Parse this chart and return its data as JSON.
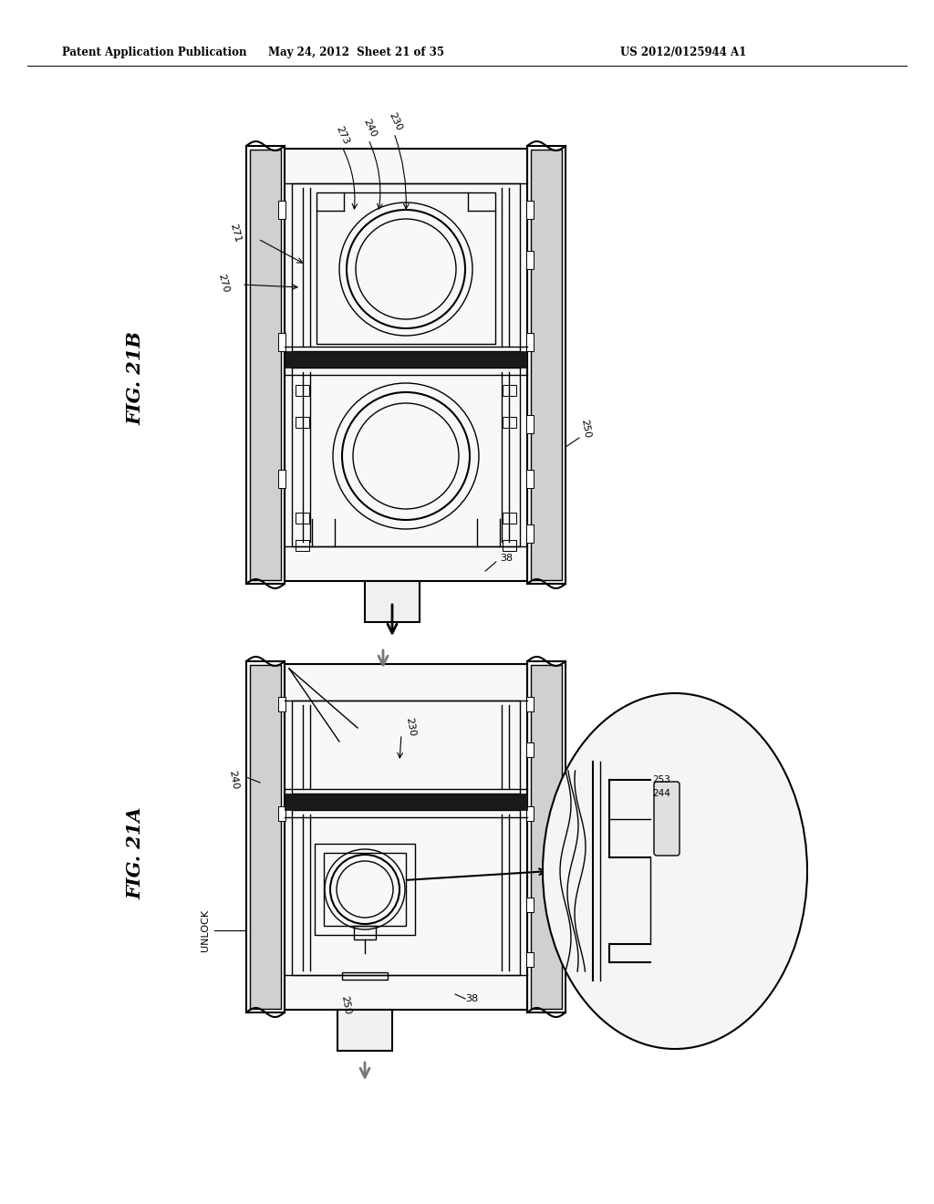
{
  "bg_color": "#ffffff",
  "line_color": "#000000",
  "header_left": "Patent Application Publication",
  "header_mid": "May 24, 2012  Sheet 21 of 35",
  "header_right": "US 2012/0125944 A1",
  "fig_label_21B": "FIG. 21B",
  "fig_label_21A": "FIG. 21A"
}
